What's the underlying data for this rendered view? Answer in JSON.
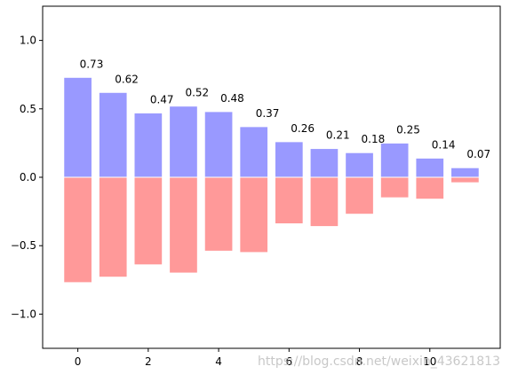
{
  "chart_data": {
    "type": "bar",
    "x": [
      0,
      1,
      2,
      3,
      4,
      5,
      6,
      7,
      8,
      9,
      10,
      11
    ],
    "series": [
      {
        "values": [
          0.73,
          0.62,
          0.47,
          0.52,
          0.48,
          0.37,
          0.26,
          0.21,
          0.18,
          0.25,
          0.14,
          0.07
        ],
        "color": "#9999ff",
        "labels": [
          "0.73",
          "0.62",
          "0.47",
          "0.52",
          "0.48",
          "0.37",
          "0.26",
          "0.21",
          "0.18",
          "0.25",
          "0.14",
          "0.07"
        ]
      },
      {
        "values": [
          -0.77,
          -0.73,
          -0.64,
          -0.7,
          -0.54,
          -0.55,
          -0.34,
          -0.36,
          -0.27,
          -0.15,
          -0.16,
          -0.04
        ],
        "color": "#ff9999"
      }
    ],
    "title": "",
    "xlabel": "",
    "ylabel": "",
    "xlim": [
      -1,
      12
    ],
    "ylim": [
      -1.25,
      1.25
    ],
    "xticks": [
      0,
      2,
      4,
      6,
      8,
      10
    ],
    "xtick_labels": [
      "0",
      "2",
      "4",
      "6",
      "8",
      "10"
    ],
    "yticks": [
      -1.0,
      -0.5,
      0.0,
      0.5,
      1.0
    ],
    "ytick_labels": [
      "−1.0",
      "−0.5",
      "0.0",
      "0.5",
      "1.0"
    ],
    "bar_edge_color": "#ffffff",
    "grid": false,
    "legend": "none"
  },
  "watermark": "https://blog.csdn.net/weixin_43621813"
}
